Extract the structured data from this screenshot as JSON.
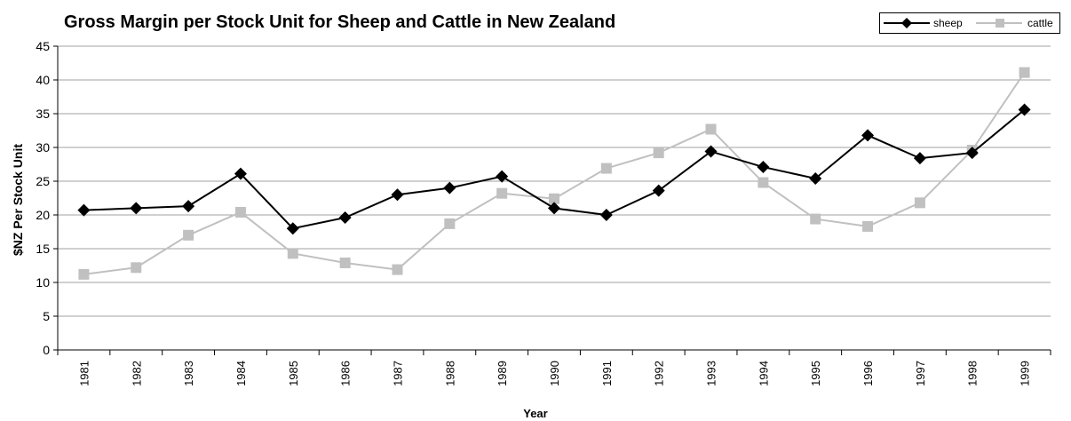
{
  "chart_data": {
    "type": "line",
    "title": "Gross Margin per Stock Unit for Sheep and Cattle in New Zealand",
    "xlabel": "Year",
    "ylabel": "$NZ Per Stock Unit",
    "ylim": [
      0,
      45
    ],
    "yticks": [
      0,
      5,
      10,
      15,
      20,
      25,
      30,
      35,
      40,
      45
    ],
    "grid": true,
    "legend_position": "top-right",
    "categories": [
      "1981",
      "1982",
      "1983",
      "1984",
      "1985",
      "1986",
      "1987",
      "1988",
      "1989",
      "1990",
      "1991",
      "1992",
      "1993",
      "1994",
      "1995",
      "1996",
      "1997",
      "1998",
      "1999"
    ],
    "series": [
      {
        "name": "sheep",
        "color": "#000000",
        "marker": "diamond",
        "values": [
          20.7,
          21.0,
          21.3,
          26.1,
          18.0,
          19.6,
          23.0,
          24.0,
          25.7,
          21.0,
          20.0,
          23.6,
          29.4,
          27.1,
          25.4,
          31.8,
          28.4,
          29.2,
          35.6
        ]
      },
      {
        "name": "cattle",
        "color": "#c0c0c0",
        "marker": "square",
        "values": [
          11.2,
          12.2,
          17.0,
          20.4,
          14.3,
          12.9,
          11.9,
          18.7,
          23.2,
          22.4,
          26.9,
          29.2,
          32.7,
          24.8,
          19.4,
          18.3,
          21.8,
          29.6,
          41.1
        ]
      }
    ]
  }
}
